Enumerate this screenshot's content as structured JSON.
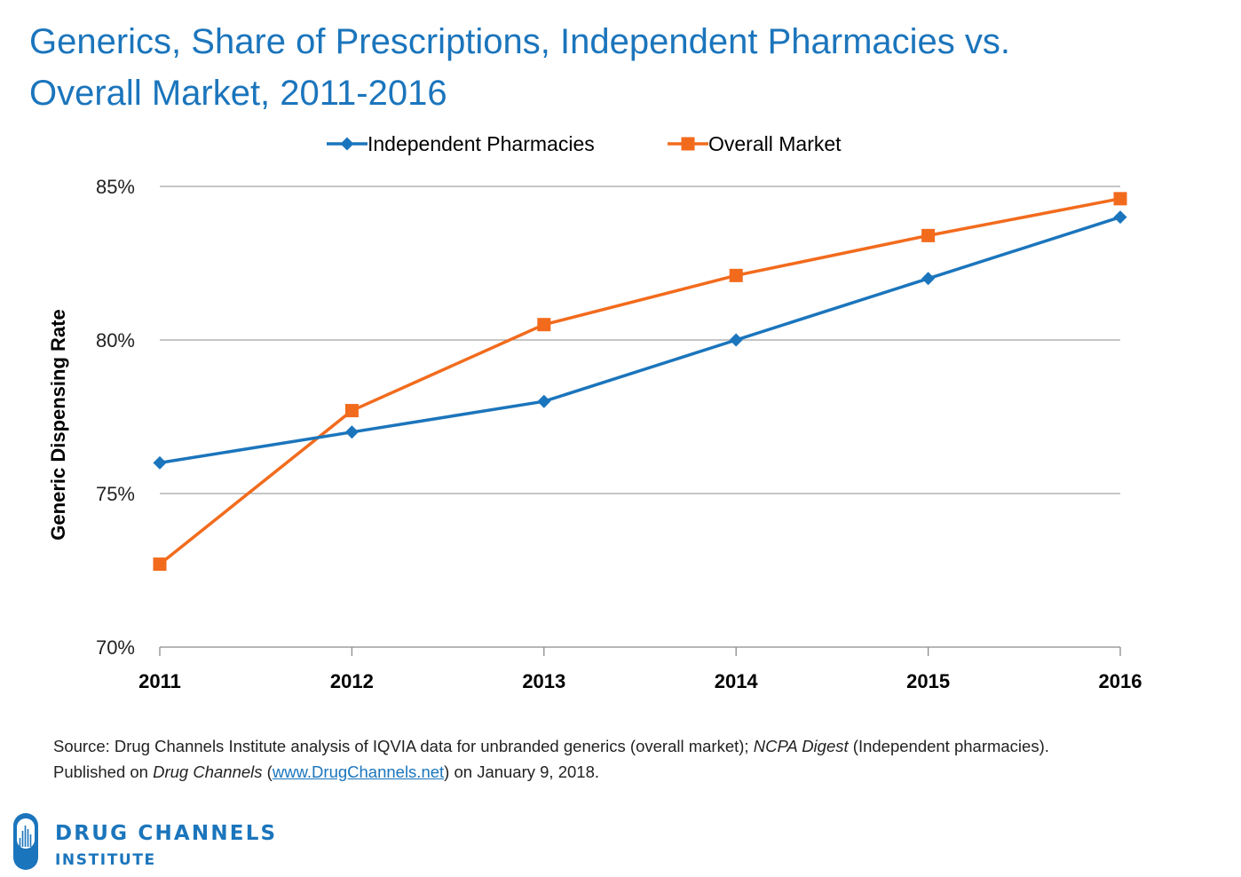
{
  "title_line1": "Generics, Share of Prescriptions, Independent Pharmacies vs.",
  "title_line2": "Overall Market, 2011-2016",
  "chart_data": {
    "type": "line",
    "categories": [
      "2011",
      "2012",
      "2013",
      "2014",
      "2015",
      "2016"
    ],
    "ylabel": "Generic Dispensing Rate",
    "ylim": [
      70,
      85
    ],
    "yticks": [
      70,
      75,
      80,
      85
    ],
    "ytick_labels": [
      "70%",
      "75%",
      "80%",
      "85%"
    ],
    "grid": true,
    "legend_position": "top-center",
    "series": [
      {
        "name": "Independent Pharmacies",
        "color": "#1b75bc",
        "marker": "diamond",
        "values": [
          76,
          77,
          78,
          80,
          82,
          84
        ]
      },
      {
        "name": "Overall Market",
        "color": "#f26b1d",
        "marker": "square",
        "values": [
          72.7,
          77.7,
          80.5,
          82.1,
          83.4,
          84.6
        ]
      }
    ]
  },
  "source": {
    "line1_a": "Source: Drug Channels Institute analysis of IQVIA data for unbranded generics (overall market); ",
    "line1_em": "NCPA Digest",
    "line1_b": " (Independent pharmacies).",
    "line2_a": "Published on ",
    "line2_em": "Drug Channels",
    "line2_b": " (",
    "link": "www.DrugChannels.net",
    "line2_c": ") on January 9, 2018."
  },
  "logo": {
    "line1": "DRUG CHANNELS",
    "line2": "INSTITUTE",
    "color": "#1b75bc"
  }
}
